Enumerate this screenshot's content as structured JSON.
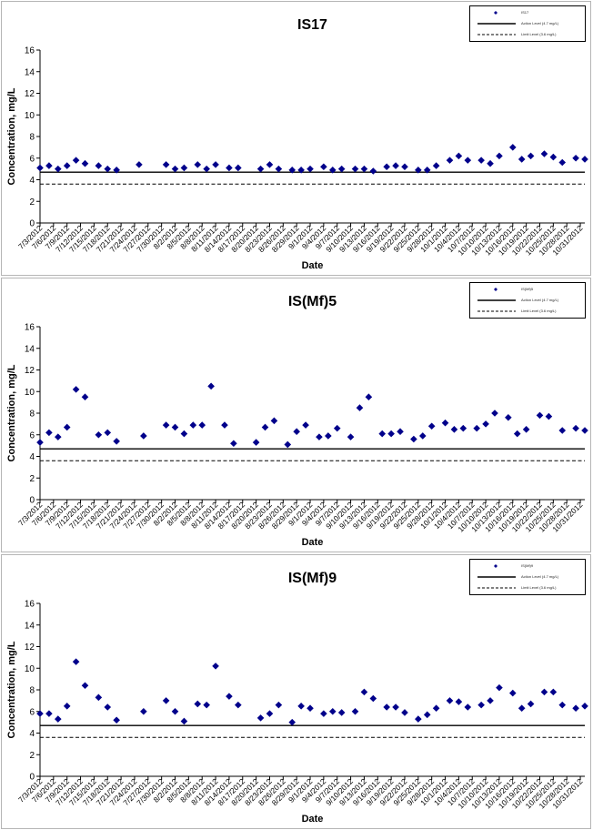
{
  "chart_data": [
    {
      "type": "scatter",
      "title": "IS17",
      "xlabel": "Date",
      "ylabel": "Concentration, mg/L",
      "ylim": [
        0,
        16
      ],
      "yticks": [
        0,
        2,
        4,
        6,
        8,
        10,
        12,
        14,
        16
      ],
      "grid": false,
      "legend_position": "top-right",
      "legend": [
        "IS17",
        "Action Level (4.7 mg/L)",
        "Limit Level (3.6 mg/L)"
      ],
      "xlim": [
        "2012-07-03",
        "2012-11-01"
      ],
      "x_tick_labels": [
        "7/3/2012",
        "7/6/2012",
        "7/9/2012",
        "7/12/2012",
        "7/15/2012",
        "7/18/2012",
        "7/21/2012",
        "7/24/2012",
        "7/27/2012",
        "7/30/2012",
        "8/2/2012",
        "8/5/2012",
        "8/8/2012",
        "8/11/2012",
        "8/14/2012",
        "8/17/2012",
        "8/20/2012",
        "8/23/2012",
        "8/26/2012",
        "8/29/2012",
        "9/1/2012",
        "9/4/2012",
        "9/7/2012",
        "9/10/2012",
        "9/13/2012",
        "9/16/2012",
        "9/19/2012",
        "9/22/2012",
        "9/25/2012",
        "9/28/2012",
        "10/1/2012",
        "10/4/2012",
        "10/7/2012",
        "10/10/2012",
        "10/13/2012",
        "10/16/2012",
        "10/19/2012",
        "10/22/2012",
        "10/25/2012",
        "10/28/2012",
        "10/31/2012"
      ],
      "action_level": 4.7,
      "limit_level": 3.6,
      "series": [
        {
          "x": [
            "2012-07-03",
            "2012-07-05",
            "2012-07-07",
            "2012-07-09",
            "2012-07-11",
            "2012-07-13",
            "2012-07-16",
            "2012-07-18",
            "2012-07-20",
            "2012-07-25",
            "2012-07-31",
            "2012-08-02",
            "2012-08-04",
            "2012-08-07",
            "2012-08-09",
            "2012-08-11",
            "2012-08-14",
            "2012-08-16",
            "2012-08-21",
            "2012-08-23",
            "2012-08-25",
            "2012-08-28",
            "2012-08-30",
            "2012-09-01",
            "2012-09-04",
            "2012-09-06",
            "2012-09-08",
            "2012-09-11",
            "2012-09-13",
            "2012-09-15",
            "2012-09-18",
            "2012-09-20",
            "2012-09-22",
            "2012-09-25",
            "2012-09-27",
            "2012-09-29",
            "2012-10-02",
            "2012-10-04",
            "2012-10-06",
            "2012-10-09",
            "2012-10-11",
            "2012-10-13",
            "2012-10-16",
            "2012-10-18",
            "2012-10-20",
            "2012-10-23",
            "2012-10-25",
            "2012-10-27",
            "2012-10-30",
            "2012-11-01"
          ],
          "y": [
            5.1,
            5.3,
            5.0,
            5.3,
            5.8,
            5.5,
            5.3,
            5.0,
            4.9,
            5.4,
            5.4,
            5.0,
            5.1,
            5.4,
            5.0,
            5.4,
            5.1,
            5.1,
            5.0,
            5.4,
            5.0,
            4.9,
            4.9,
            5.0,
            5.2,
            4.9,
            5.0,
            5.0,
            5.0,
            4.8,
            5.2,
            5.3,
            5.2,
            4.9,
            4.9,
            5.3,
            5.8,
            6.2,
            5.8,
            5.8,
            5.5,
            6.2,
            7.0,
            5.9,
            6.2,
            6.4,
            6.1,
            5.6,
            6.0,
            5.9
          ]
        }
      ]
    },
    {
      "type": "scatter",
      "title": "IS(Mf)5",
      "xlabel": "Date",
      "ylabel": "Concentration, mg/L",
      "ylim": [
        0,
        16
      ],
      "yticks": [
        0,
        2,
        4,
        6,
        8,
        10,
        12,
        14,
        16
      ],
      "grid": false,
      "legend_position": "top-right",
      "legend": [
        "IS(Mf)5",
        "Action Level (4.7 mg/L)",
        "Limit Level (3.6 mg/L)"
      ],
      "xlim": [
        "2012-07-03",
        "2012-11-01"
      ],
      "x_tick_labels": [
        "7/3/2012",
        "7/6/2012",
        "7/9/2012",
        "7/12/2012",
        "7/15/2012",
        "7/18/2012",
        "7/21/2012",
        "7/24/2012",
        "7/27/2012",
        "7/30/2012",
        "8/2/2012",
        "8/5/2012",
        "8/8/2012",
        "8/11/2012",
        "8/14/2012",
        "8/17/2012",
        "8/20/2012",
        "8/23/2012",
        "8/26/2012",
        "8/29/2012",
        "9/1/2012",
        "9/4/2012",
        "9/7/2012",
        "9/10/2012",
        "9/13/2012",
        "9/16/2012",
        "9/19/2012",
        "9/22/2012",
        "9/25/2012",
        "9/28/2012",
        "10/1/2012",
        "10/4/2012",
        "10/7/2012",
        "10/10/2012",
        "10/13/2012",
        "10/16/2012",
        "10/19/2012",
        "10/22/2012",
        "10/25/2012",
        "10/28/2012",
        "10/31/2012"
      ],
      "action_level": 4.7,
      "limit_level": 3.6,
      "series": [
        {
          "x": [
            "2012-07-03",
            "2012-07-05",
            "2012-07-07",
            "2012-07-09",
            "2012-07-11",
            "2012-07-13",
            "2012-07-16",
            "2012-07-18",
            "2012-07-20",
            "2012-07-26",
            "2012-07-31",
            "2012-08-02",
            "2012-08-04",
            "2012-08-06",
            "2012-08-08",
            "2012-08-10",
            "2012-08-13",
            "2012-08-15",
            "2012-08-20",
            "2012-08-22",
            "2012-08-24",
            "2012-08-27",
            "2012-08-29",
            "2012-08-31",
            "2012-09-03",
            "2012-09-05",
            "2012-09-07",
            "2012-09-10",
            "2012-09-12",
            "2012-09-14",
            "2012-09-17",
            "2012-09-19",
            "2012-09-21",
            "2012-09-24",
            "2012-09-26",
            "2012-09-28",
            "2012-10-01",
            "2012-10-03",
            "2012-10-05",
            "2012-10-08",
            "2012-10-10",
            "2012-10-12",
            "2012-10-15",
            "2012-10-17",
            "2012-10-19",
            "2012-10-22",
            "2012-10-24",
            "2012-10-27",
            "2012-10-30",
            "2012-11-01"
          ],
          "y": [
            5.3,
            6.2,
            5.8,
            6.7,
            10.2,
            9.5,
            6.0,
            6.2,
            5.4,
            5.9,
            6.9,
            6.7,
            6.1,
            6.9,
            6.9,
            10.5,
            6.9,
            5.2,
            5.3,
            6.7,
            7.3,
            5.1,
            6.3,
            6.9,
            5.8,
            5.9,
            6.6,
            5.8,
            8.5,
            9.5,
            6.1,
            6.1,
            6.3,
            5.6,
            5.9,
            6.8,
            7.1,
            6.5,
            6.6,
            6.6,
            7.0,
            8.0,
            7.6,
            6.1,
            6.5,
            7.8,
            7.7,
            6.4,
            6.6,
            6.4
          ]
        }
      ]
    },
    {
      "type": "scatter",
      "title": "IS(Mf)9",
      "xlabel": "Date",
      "ylabel": "Concentration, mg/L",
      "ylim": [
        0,
        16
      ],
      "yticks": [
        0,
        2,
        4,
        6,
        8,
        10,
        12,
        14,
        16
      ],
      "grid": false,
      "legend_position": "top-right",
      "legend": [
        "IS(Mf)9",
        "Action Level (4.7 mg/L)",
        "Limit Level (3.6 mg/L)"
      ],
      "xlim": [
        "2012-07-03",
        "2012-11-01"
      ],
      "x_tick_labels": [
        "7/3/2012",
        "7/6/2012",
        "7/9/2012",
        "7/12/2012",
        "7/15/2012",
        "7/18/2012",
        "7/21/2012",
        "7/24/2012",
        "7/27/2012",
        "7/30/2012",
        "8/2/2012",
        "8/5/2012",
        "8/8/2012",
        "8/11/2012",
        "8/14/2012",
        "8/17/2012",
        "8/20/2012",
        "8/23/2012",
        "8/26/2012",
        "8/29/2012",
        "9/1/2012",
        "9/4/2012",
        "9/7/2012",
        "9/10/2012",
        "9/13/2012",
        "9/16/2012",
        "9/19/2012",
        "9/22/2012",
        "9/25/2012",
        "9/28/2012",
        "10/1/2012",
        "10/4/2012",
        "10/7/2012",
        "10/10/2012",
        "10/13/2012",
        "10/16/2012",
        "10/19/2012",
        "10/22/2012",
        "10/25/2012",
        "10/28/2012",
        "10/31/2012"
      ],
      "action_level": 4.7,
      "limit_level": 3.6,
      "series": [
        {
          "x": [
            "2012-07-03",
            "2012-07-05",
            "2012-07-07",
            "2012-07-09",
            "2012-07-11",
            "2012-07-13",
            "2012-07-16",
            "2012-07-18",
            "2012-07-20",
            "2012-07-26",
            "2012-07-31",
            "2012-08-02",
            "2012-08-04",
            "2012-08-07",
            "2012-08-09",
            "2012-08-11",
            "2012-08-14",
            "2012-08-16",
            "2012-08-21",
            "2012-08-23",
            "2012-08-25",
            "2012-08-28",
            "2012-08-30",
            "2012-09-01",
            "2012-09-04",
            "2012-09-06",
            "2012-09-08",
            "2012-09-11",
            "2012-09-13",
            "2012-09-15",
            "2012-09-18",
            "2012-09-20",
            "2012-09-22",
            "2012-09-25",
            "2012-09-27",
            "2012-09-29",
            "2012-10-02",
            "2012-10-04",
            "2012-10-06",
            "2012-10-09",
            "2012-10-11",
            "2012-10-13",
            "2012-10-16",
            "2012-10-18",
            "2012-10-20",
            "2012-10-23",
            "2012-10-25",
            "2012-10-27",
            "2012-10-30",
            "2012-11-01"
          ],
          "y": [
            5.8,
            5.8,
            5.3,
            6.5,
            10.6,
            8.4,
            7.3,
            6.4,
            5.2,
            6.0,
            7.0,
            6.0,
            5.1,
            6.7,
            6.6,
            10.2,
            7.4,
            6.6,
            5.4,
            5.8,
            6.6,
            5.0,
            6.5,
            6.3,
            5.8,
            6.0,
            5.9,
            6.0,
            7.8,
            7.2,
            6.4,
            6.4,
            5.9,
            5.3,
            5.7,
            6.3,
            7.0,
            6.9,
            6.4,
            6.6,
            7.0,
            8.2,
            7.7,
            6.3,
            6.7,
            7.8,
            7.8,
            6.6,
            6.3,
            6.5
          ]
        }
      ]
    }
  ]
}
